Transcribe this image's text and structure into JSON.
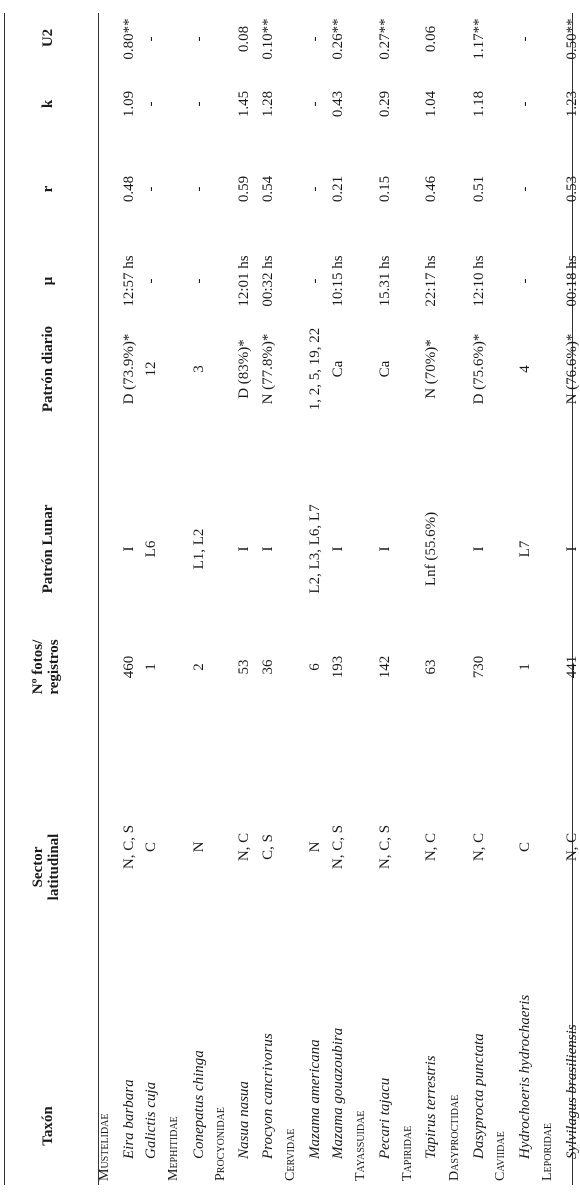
{
  "headers": {
    "taxon": "Taxón",
    "sector": "Sector\nlatitudinal",
    "fotos": "Nº fotos/\nregistros",
    "lunar": "Patrón Lunar",
    "diario": "Patrón diario",
    "mu": "µ",
    "r": "r",
    "k": "k",
    "u2": "U2"
  },
  "rows": [
    {
      "type": "family",
      "taxon": "Mustelidae"
    },
    {
      "type": "species",
      "taxon": "Eira barbara",
      "sector": "N, C, S",
      "fotos": "460",
      "lunar": "I",
      "diario": "D (73.9%)*",
      "mu": "12:57 hs",
      "r": "0.48",
      "k": "1.09",
      "u2": "0.80**"
    },
    {
      "type": "species",
      "taxon": "Galictis cuja",
      "sector": "C",
      "fotos": "1",
      "lunar": "L6",
      "diario": "12",
      "mu": "-",
      "r": "-",
      "k": "-",
      "u2": "-"
    },
    {
      "type": "family",
      "taxon": "Mephitidae"
    },
    {
      "type": "species",
      "taxon": "Conepatus chinga",
      "sector": "N",
      "fotos": "2",
      "lunar": "L1, L2",
      "diario": "3",
      "mu": "-",
      "r": "-",
      "k": "-",
      "u2": "-"
    },
    {
      "type": "family",
      "taxon": "Procyonidae"
    },
    {
      "type": "species",
      "taxon": "Nasua nasua",
      "sector": "N, C",
      "fotos": "53",
      "lunar": "I",
      "diario": "D (83%)*",
      "mu": "12:01 hs",
      "r": "0.59",
      "k": "1.45",
      "u2": "0.08"
    },
    {
      "type": "species",
      "taxon": "Procyon cancrivorus",
      "sector": "C, S",
      "fotos": "36",
      "lunar": "I",
      "diario": "N (77.8%)*",
      "mu": "00:32 hs",
      "r": "0.54",
      "k": "1.28",
      "u2": "0.10**"
    },
    {
      "type": "family",
      "taxon": "Cervidae"
    },
    {
      "type": "species",
      "taxon": "Mazama americana",
      "sector": "N",
      "fotos": "6",
      "lunar": "L2, L3, L6, L7",
      "diario": "1, 2, 5, 19, 22",
      "mu": "-",
      "r": "-",
      "k": "-",
      "u2": "-"
    },
    {
      "type": "species",
      "taxon": "Mazama gouazoubira",
      "sector": "N, C, S",
      "fotos": "193",
      "lunar": "I",
      "diario": "Ca",
      "mu": "10:15 hs",
      "r": "0.21",
      "k": "0.43",
      "u2": "0.26**"
    },
    {
      "type": "family",
      "taxon": "Tayassuidae"
    },
    {
      "type": "species",
      "taxon": "Pecari tajacu",
      "sector": "N, C, S",
      "fotos": "142",
      "lunar": "I",
      "diario": "Ca",
      "mu": "15.31 hs",
      "r": "0.15",
      "k": "0.29",
      "u2": "0.27**"
    },
    {
      "type": "family",
      "taxon": "Tapiridae"
    },
    {
      "type": "species",
      "taxon": "Tapirus terrestris",
      "sector": "N, C",
      "fotos": "63",
      "lunar": "Lnf (55.6%)",
      "diario": "N (70%)*",
      "mu": "22:17 hs",
      "r": "0.46",
      "k": "1.04",
      "u2": "0.06"
    },
    {
      "type": "family",
      "taxon": "Dasyproctidae"
    },
    {
      "type": "species",
      "taxon": "Dasyprocta punctata",
      "sector": "N, C",
      "fotos": "730",
      "lunar": "I",
      "diario": "D (75.6%)*",
      "mu": "12:10 hs",
      "r": "0.51",
      "k": "1.18",
      "u2": "1.17**"
    },
    {
      "type": "family",
      "taxon": "Caviidae"
    },
    {
      "type": "species",
      "taxon": "Hydrochoeris hydrochaeris",
      "sector": "C",
      "fotos": "1",
      "lunar": "L7",
      "diario": "4",
      "mu": "-",
      "r": "-",
      "k": "-",
      "u2": "-"
    },
    {
      "type": "family",
      "taxon": "Leporidae"
    },
    {
      "type": "species",
      "taxon": "Sylvilagus brasiliensis",
      "sector": "N, C",
      "fotos": "441",
      "lunar": "I",
      "diario": "N (76.6%)*",
      "mu": "00:18 hs",
      "r": "0.53",
      "k": "1.23",
      "u2": "0.50**"
    }
  ]
}
